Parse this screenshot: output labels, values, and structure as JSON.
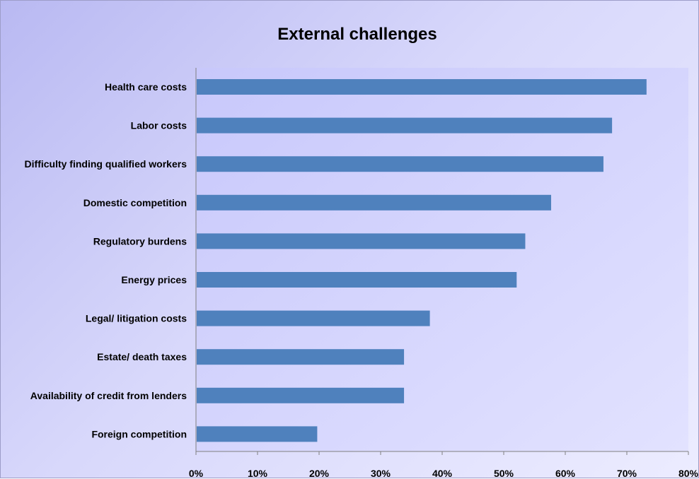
{
  "chart_data": {
    "type": "bar",
    "orientation": "horizontal",
    "title": "External challenges",
    "xlabel": "",
    "ylabel": "",
    "categories": [
      "Health care costs",
      "Labor costs",
      "Difficulty finding qualified workers",
      "Domestic competition",
      "Regulatory burdens",
      "Energy prices",
      "Legal/ litigation costs",
      "Estate/ death taxes",
      "Availability of credit from lenders",
      "Foreign competition"
    ],
    "values": [
      73.2,
      67.6,
      66.2,
      57.7,
      53.5,
      52.1,
      38.0,
      33.8,
      33.8,
      19.7
    ],
    "xlim": [
      0,
      80
    ],
    "xticks": [
      "0%",
      "10%",
      "20%",
      "30%",
      "40%",
      "50%",
      "60%",
      "70%",
      "80%"
    ],
    "grid": false,
    "legend": "none",
    "colors": {
      "bar": "#4f81bd",
      "plot_area": "#ccccff",
      "background": "#d8d8fb"
    }
  }
}
